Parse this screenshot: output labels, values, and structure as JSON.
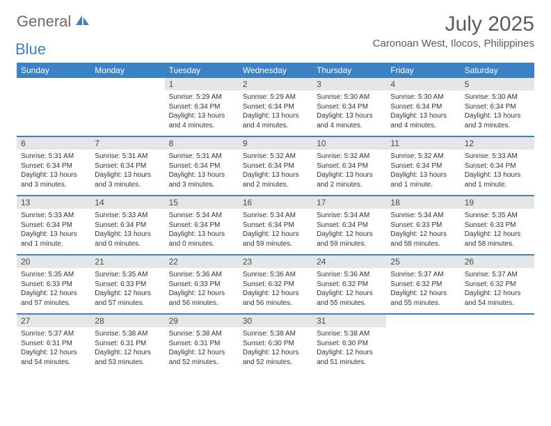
{
  "logo": {
    "general": "General",
    "blue": "Blue",
    "accent_color": "#3b82c4",
    "gray_color": "#6b6b6b"
  },
  "header": {
    "month_title": "July 2025",
    "location": "Caronoan West, Ilocos, Philippines"
  },
  "colors": {
    "header_bg": "#3b82c4",
    "header_text": "#ffffff",
    "daynum_bg": "#e6e6e6",
    "border": "#3b82c4",
    "text": "#333333"
  },
  "day_labels": [
    "Sunday",
    "Monday",
    "Tuesday",
    "Wednesday",
    "Thursday",
    "Friday",
    "Saturday"
  ],
  "weeks": [
    [
      {
        "empty": true
      },
      {
        "empty": true
      },
      {
        "num": "1",
        "sunrise": "Sunrise: 5:29 AM",
        "sunset": "Sunset: 6:34 PM",
        "daylight1": "Daylight: 13 hours",
        "daylight2": "and 4 minutes."
      },
      {
        "num": "2",
        "sunrise": "Sunrise: 5:29 AM",
        "sunset": "Sunset: 6:34 PM",
        "daylight1": "Daylight: 13 hours",
        "daylight2": "and 4 minutes."
      },
      {
        "num": "3",
        "sunrise": "Sunrise: 5:30 AM",
        "sunset": "Sunset: 6:34 PM",
        "daylight1": "Daylight: 13 hours",
        "daylight2": "and 4 minutes."
      },
      {
        "num": "4",
        "sunrise": "Sunrise: 5:30 AM",
        "sunset": "Sunset: 6:34 PM",
        "daylight1": "Daylight: 13 hours",
        "daylight2": "and 4 minutes."
      },
      {
        "num": "5",
        "sunrise": "Sunrise: 5:30 AM",
        "sunset": "Sunset: 6:34 PM",
        "daylight1": "Daylight: 13 hours",
        "daylight2": "and 3 minutes."
      }
    ],
    [
      {
        "num": "6",
        "sunrise": "Sunrise: 5:31 AM",
        "sunset": "Sunset: 6:34 PM",
        "daylight1": "Daylight: 13 hours",
        "daylight2": "and 3 minutes."
      },
      {
        "num": "7",
        "sunrise": "Sunrise: 5:31 AM",
        "sunset": "Sunset: 6:34 PM",
        "daylight1": "Daylight: 13 hours",
        "daylight2": "and 3 minutes."
      },
      {
        "num": "8",
        "sunrise": "Sunrise: 5:31 AM",
        "sunset": "Sunset: 6:34 PM",
        "daylight1": "Daylight: 13 hours",
        "daylight2": "and 3 minutes."
      },
      {
        "num": "9",
        "sunrise": "Sunrise: 5:32 AM",
        "sunset": "Sunset: 6:34 PM",
        "daylight1": "Daylight: 13 hours",
        "daylight2": "and 2 minutes."
      },
      {
        "num": "10",
        "sunrise": "Sunrise: 5:32 AM",
        "sunset": "Sunset: 6:34 PM",
        "daylight1": "Daylight: 13 hours",
        "daylight2": "and 2 minutes."
      },
      {
        "num": "11",
        "sunrise": "Sunrise: 5:32 AM",
        "sunset": "Sunset: 6:34 PM",
        "daylight1": "Daylight: 13 hours",
        "daylight2": "and 1 minute."
      },
      {
        "num": "12",
        "sunrise": "Sunrise: 5:33 AM",
        "sunset": "Sunset: 6:34 PM",
        "daylight1": "Daylight: 13 hours",
        "daylight2": "and 1 minute."
      }
    ],
    [
      {
        "num": "13",
        "sunrise": "Sunrise: 5:33 AM",
        "sunset": "Sunset: 6:34 PM",
        "daylight1": "Daylight: 13 hours",
        "daylight2": "and 1 minute."
      },
      {
        "num": "14",
        "sunrise": "Sunrise: 5:33 AM",
        "sunset": "Sunset: 6:34 PM",
        "daylight1": "Daylight: 13 hours",
        "daylight2": "and 0 minutes."
      },
      {
        "num": "15",
        "sunrise": "Sunrise: 5:34 AM",
        "sunset": "Sunset: 6:34 PM",
        "daylight1": "Daylight: 13 hours",
        "daylight2": "and 0 minutes."
      },
      {
        "num": "16",
        "sunrise": "Sunrise: 5:34 AM",
        "sunset": "Sunset: 6:34 PM",
        "daylight1": "Daylight: 12 hours",
        "daylight2": "and 59 minutes."
      },
      {
        "num": "17",
        "sunrise": "Sunrise: 5:34 AM",
        "sunset": "Sunset: 6:34 PM",
        "daylight1": "Daylight: 12 hours",
        "daylight2": "and 59 minutes."
      },
      {
        "num": "18",
        "sunrise": "Sunrise: 5:34 AM",
        "sunset": "Sunset: 6:33 PM",
        "daylight1": "Daylight: 12 hours",
        "daylight2": "and 58 minutes."
      },
      {
        "num": "19",
        "sunrise": "Sunrise: 5:35 AM",
        "sunset": "Sunset: 6:33 PM",
        "daylight1": "Daylight: 12 hours",
        "daylight2": "and 58 minutes."
      }
    ],
    [
      {
        "num": "20",
        "sunrise": "Sunrise: 5:35 AM",
        "sunset": "Sunset: 6:33 PM",
        "daylight1": "Daylight: 12 hours",
        "daylight2": "and 57 minutes."
      },
      {
        "num": "21",
        "sunrise": "Sunrise: 5:35 AM",
        "sunset": "Sunset: 6:33 PM",
        "daylight1": "Daylight: 12 hours",
        "daylight2": "and 57 minutes."
      },
      {
        "num": "22",
        "sunrise": "Sunrise: 5:36 AM",
        "sunset": "Sunset: 6:33 PM",
        "daylight1": "Daylight: 12 hours",
        "daylight2": "and 56 minutes."
      },
      {
        "num": "23",
        "sunrise": "Sunrise: 5:36 AM",
        "sunset": "Sunset: 6:32 PM",
        "daylight1": "Daylight: 12 hours",
        "daylight2": "and 56 minutes."
      },
      {
        "num": "24",
        "sunrise": "Sunrise: 5:36 AM",
        "sunset": "Sunset: 6:32 PM",
        "daylight1": "Daylight: 12 hours",
        "daylight2": "and 55 minutes."
      },
      {
        "num": "25",
        "sunrise": "Sunrise: 5:37 AM",
        "sunset": "Sunset: 6:32 PM",
        "daylight1": "Daylight: 12 hours",
        "daylight2": "and 55 minutes."
      },
      {
        "num": "26",
        "sunrise": "Sunrise: 5:37 AM",
        "sunset": "Sunset: 6:32 PM",
        "daylight1": "Daylight: 12 hours",
        "daylight2": "and 54 minutes."
      }
    ],
    [
      {
        "num": "27",
        "sunrise": "Sunrise: 5:37 AM",
        "sunset": "Sunset: 6:31 PM",
        "daylight1": "Daylight: 12 hours",
        "daylight2": "and 54 minutes."
      },
      {
        "num": "28",
        "sunrise": "Sunrise: 5:38 AM",
        "sunset": "Sunset: 6:31 PM",
        "daylight1": "Daylight: 12 hours",
        "daylight2": "and 53 minutes."
      },
      {
        "num": "29",
        "sunrise": "Sunrise: 5:38 AM",
        "sunset": "Sunset: 6:31 PM",
        "daylight1": "Daylight: 12 hours",
        "daylight2": "and 52 minutes."
      },
      {
        "num": "30",
        "sunrise": "Sunrise: 5:38 AM",
        "sunset": "Sunset: 6:30 PM",
        "daylight1": "Daylight: 12 hours",
        "daylight2": "and 52 minutes."
      },
      {
        "num": "31",
        "sunrise": "Sunrise: 5:38 AM",
        "sunset": "Sunset: 6:30 PM",
        "daylight1": "Daylight: 12 hours",
        "daylight2": "and 51 minutes."
      },
      {
        "empty": true
      },
      {
        "empty": true
      }
    ]
  ]
}
